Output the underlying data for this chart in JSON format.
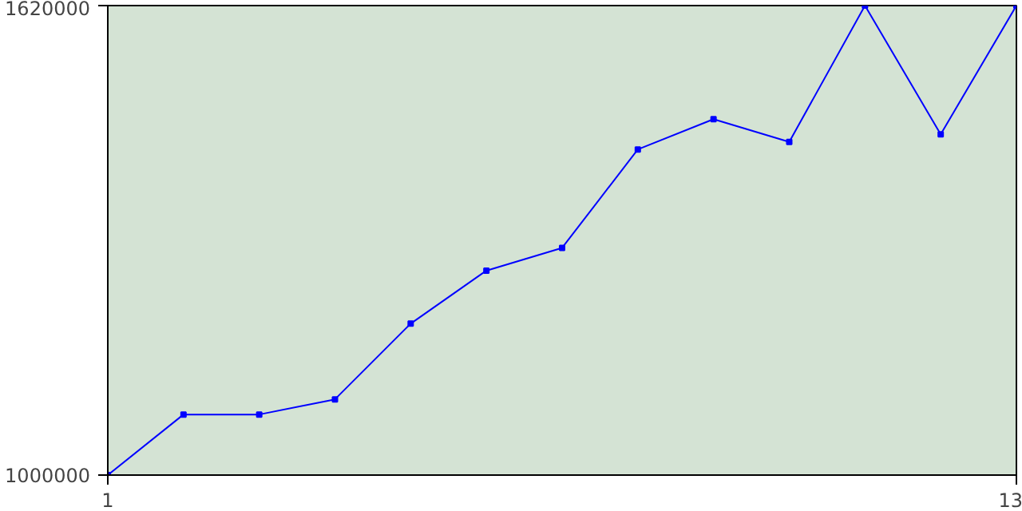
{
  "chart_data": {
    "type": "line",
    "x": [
      1,
      2,
      3,
      4,
      5,
      6,
      7,
      8,
      9,
      10,
      11,
      12,
      13
    ],
    "series": [
      {
        "color": "#0000ff",
        "values": [
          1000000,
          1080000,
          1080000,
          1100000,
          1200000,
          1270000,
          1300000,
          1430000,
          1470000,
          1440000,
          1620000,
          1450000,
          1620000
        ]
      }
    ],
    "xlim": [
      1,
      13
    ],
    "ylim": [
      1000000,
      1620000
    ],
    "xticks": [
      1,
      13
    ],
    "yticks": [
      1000000,
      1620000
    ],
    "marker": "square",
    "line_style": "solid"
  }
}
